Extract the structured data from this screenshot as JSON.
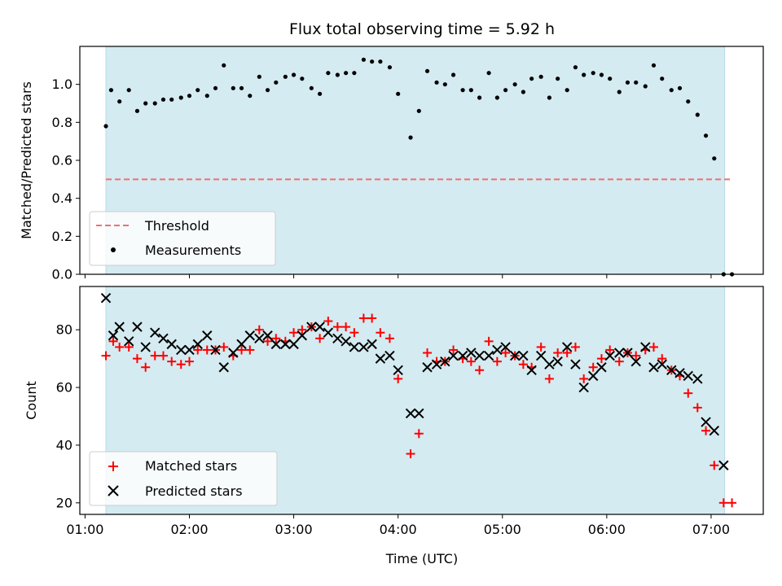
{
  "chart_data": [
    {
      "type": "scatter",
      "title": "Flux total observing time = 5.92 h",
      "xlabel": "",
      "ylabel": "Matched/Predicted stars",
      "x_unit": "hours UTC",
      "xlim": [
        0.95,
        7.5
      ],
      "ylim": [
        0,
        1.2
      ],
      "yticks": [
        0.0,
        0.2,
        0.4,
        0.6,
        0.8,
        1.0
      ],
      "ytick_labels": [
        "0.0",
        "0.2",
        "0.4",
        "0.6",
        "0.8",
        "1.0"
      ],
      "observing_window": [
        1.2,
        7.13
      ],
      "window_color": "#d4ebf1",
      "legend_position": "lower-left",
      "threshold": {
        "name": "Threshold",
        "value": 0.5,
        "x_range": [
          1.2,
          7.2
        ],
        "color": "#f07070"
      },
      "series": [
        {
          "name": "Measurements",
          "marker": "dot",
          "color": "#000000",
          "x": [
            1.2,
            1.25,
            1.33,
            1.42,
            1.5,
            1.58,
            1.67,
            1.75,
            1.83,
            1.92,
            2.0,
            2.08,
            2.17,
            2.25,
            2.33,
            2.42,
            2.5,
            2.58,
            2.67,
            2.75,
            2.83,
            2.92,
            3.0,
            3.08,
            3.17,
            3.25,
            3.33,
            3.42,
            3.5,
            3.58,
            3.67,
            3.75,
            3.83,
            3.92,
            4.0,
            4.12,
            4.2,
            4.28,
            4.37,
            4.45,
            4.53,
            4.62,
            4.7,
            4.78,
            4.87,
            4.95,
            5.03,
            5.12,
            5.2,
            5.28,
            5.37,
            5.45,
            5.53,
            5.62,
            5.7,
            5.78,
            5.87,
            5.95,
            6.03,
            6.12,
            6.2,
            6.28,
            6.37,
            6.45,
            6.53,
            6.62,
            6.7,
            6.78,
            6.87,
            6.95,
            7.03,
            7.12,
            7.2
          ],
          "y": [
            0.78,
            0.97,
            0.91,
            0.97,
            0.86,
            0.9,
            0.9,
            0.92,
            0.92,
            0.93,
            0.94,
            0.97,
            0.94,
            0.98,
            1.1,
            0.98,
            0.98,
            0.94,
            1.04,
            0.97,
            1.01,
            1.04,
            1.05,
            1.03,
            0.98,
            0.95,
            1.06,
            1.05,
            1.06,
            1.06,
            1.13,
            1.12,
            1.12,
            1.09,
            0.95,
            0.72,
            0.86,
            1.07,
            1.01,
            1.0,
            1.05,
            0.97,
            0.97,
            0.93,
            1.06,
            0.93,
            0.97,
            1.0,
            0.96,
            1.03,
            1.04,
            0.93,
            1.03,
            0.97,
            1.09,
            1.05,
            1.06,
            1.05,
            1.03,
            0.96,
            1.01,
            1.01,
            0.99,
            1.1,
            1.03,
            0.97,
            0.98,
            0.91,
            0.84,
            0.73,
            0.61,
            0.0,
            0.0
          ]
        }
      ]
    },
    {
      "type": "scatter",
      "title": "",
      "xlabel": "Time (UTC)",
      "ylabel": "Count",
      "x_unit": "hours UTC",
      "xlim": [
        0.95,
        7.5
      ],
      "ylim": [
        16,
        95
      ],
      "xticks": [
        1,
        2,
        3,
        4,
        5,
        6,
        7
      ],
      "xtick_labels": [
        "01:00",
        "02:00",
        "03:00",
        "04:00",
        "05:00",
        "06:00",
        "07:00"
      ],
      "yticks": [
        20,
        40,
        60,
        80
      ],
      "ytick_labels": [
        "20",
        "40",
        "60",
        "80"
      ],
      "observing_window": [
        1.2,
        7.13
      ],
      "window_color": "#d4ebf1",
      "legend_position": "lower-left",
      "series": [
        {
          "name": "Matched stars",
          "marker": "plus",
          "color": "#ff0000",
          "x": [
            1.2,
            1.27,
            1.33,
            1.42,
            1.5,
            1.58,
            1.67,
            1.75,
            1.83,
            1.92,
            2.0,
            2.08,
            2.17,
            2.25,
            2.33,
            2.42,
            2.5,
            2.58,
            2.67,
            2.75,
            2.83,
            2.92,
            3.0,
            3.08,
            3.17,
            3.25,
            3.33,
            3.42,
            3.5,
            3.58,
            3.67,
            3.75,
            3.83,
            3.92,
            4.0,
            4.12,
            4.2,
            4.28,
            4.37,
            4.45,
            4.53,
            4.62,
            4.7,
            4.78,
            4.87,
            4.95,
            5.03,
            5.12,
            5.2,
            5.28,
            5.37,
            5.45,
            5.53,
            5.62,
            5.7,
            5.78,
            5.87,
            5.95,
            6.03,
            6.12,
            6.2,
            6.28,
            6.37,
            6.45,
            6.53,
            6.62,
            6.7,
            6.78,
            6.87,
            6.95,
            7.03,
            7.12,
            7.2
          ],
          "y": [
            71,
            76,
            74,
            74,
            70,
            67,
            71,
            71,
            69,
            68,
            69,
            73,
            73,
            73,
            74,
            71,
            73,
            73,
            80,
            76,
            77,
            76,
            79,
            80,
            81,
            77,
            83,
            81,
            81,
            79,
            84,
            84,
            79,
            77,
            63,
            37,
            44,
            72,
            69,
            69,
            73,
            70,
            69,
            66,
            76,
            69,
            72,
            71,
            68,
            67,
            74,
            63,
            72,
            72,
            74,
            63,
            67,
            70,
            73,
            69,
            72,
            71,
            73,
            74,
            70,
            66,
            64,
            58,
            53,
            45,
            33,
            20,
            20
          ]
        },
        {
          "name": "Predicted stars",
          "marker": "x",
          "color": "#000000",
          "x": [
            1.2,
            1.27,
            1.33,
            1.42,
            1.5,
            1.58,
            1.67,
            1.75,
            1.83,
            1.92,
            2.0,
            2.08,
            2.17,
            2.25,
            2.33,
            2.42,
            2.5,
            2.58,
            2.67,
            2.75,
            2.83,
            2.92,
            3.0,
            3.08,
            3.17,
            3.25,
            3.33,
            3.42,
            3.5,
            3.58,
            3.67,
            3.75,
            3.83,
            3.92,
            4.0,
            4.12,
            4.2,
            4.28,
            4.37,
            4.45,
            4.53,
            4.62,
            4.7,
            4.78,
            4.87,
            4.95,
            5.03,
            5.12,
            5.2,
            5.28,
            5.37,
            5.45,
            5.53,
            5.62,
            5.7,
            5.78,
            5.87,
            5.95,
            6.03,
            6.12,
            6.2,
            6.28,
            6.37,
            6.45,
            6.53,
            6.62,
            6.7,
            6.78,
            6.87,
            6.95,
            7.03,
            7.12
          ],
          "y": [
            91,
            78,
            81,
            76,
            81,
            74,
            79,
            77,
            75,
            73,
            73,
            75,
            78,
            73,
            67,
            72,
            75,
            78,
            77,
            78,
            75,
            75,
            75,
            78,
            81,
            81,
            79,
            77,
            76,
            74,
            74,
            75,
            70,
            71,
            66,
            51,
            51,
            67,
            68,
            69,
            71,
            71,
            72,
            71,
            71,
            73,
            74,
            71,
            71,
            66,
            71,
            68,
            69,
            74,
            68,
            60,
            64,
            67,
            71,
            72,
            72,
            69,
            74,
            67,
            68,
            66,
            65,
            64,
            63,
            48,
            45,
            33
          ]
        }
      ]
    }
  ]
}
